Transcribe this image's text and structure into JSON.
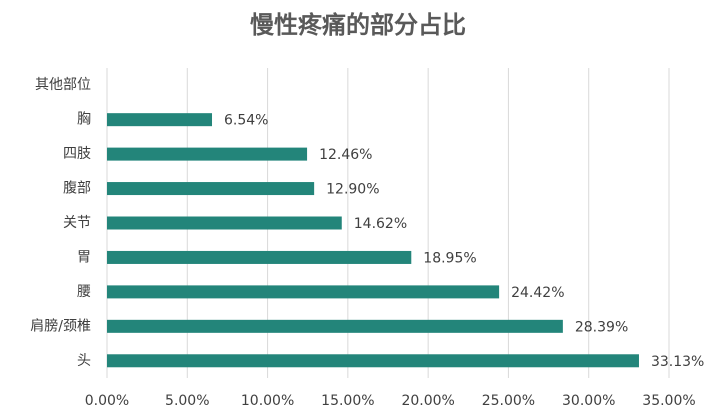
{
  "chart_data": {
    "type": "bar",
    "orientation": "horizontal",
    "title": "慢性疼痛的部分占比",
    "categories": [
      "其他部位",
      "胸",
      "四肢",
      "腹部",
      "关节",
      "胃",
      "腰",
      "肩膀/颈椎",
      "头"
    ],
    "values": [
      null,
      6.54,
      12.46,
      12.9,
      14.62,
      18.95,
      24.42,
      28.39,
      33.13
    ],
    "value_labels": [
      null,
      "6.54%",
      "12.46%",
      "12.90%",
      "14.62%",
      "18.95%",
      "24.42%",
      "28.39%",
      "33.13%"
    ],
    "color": "#23857a",
    "xlim": [
      0,
      35
    ],
    "xticks": [
      {
        "value": 0,
        "label": "0.00%"
      },
      {
        "value": 5,
        "label": "5.00%"
      },
      {
        "value": 10,
        "label": "10.00%"
      },
      {
        "value": 15,
        "label": "15.00%"
      },
      {
        "value": 20,
        "label": "20.00%"
      },
      {
        "value": 25,
        "label": "25.00%"
      },
      {
        "value": 30,
        "label": "30.00%"
      },
      {
        "value": 35,
        "label": "35.00%"
      }
    ],
    "grid": true
  }
}
